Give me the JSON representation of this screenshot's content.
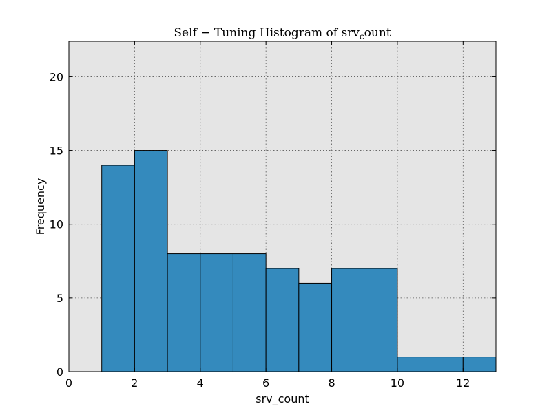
{
  "chart_data": {
    "type": "bar",
    "title": "Self − Tuning Histogram of srv",
    "title_subscript": "c",
    "title_suffix": "ount",
    "xlabel": "srv_count",
    "ylabel": "Frequency",
    "xlim": [
      0,
      13
    ],
    "ylim": [
      0,
      22.4
    ],
    "x_ticks": [
      0,
      2,
      4,
      6,
      8,
      10,
      12
    ],
    "x_tick_labels": [
      "0",
      "2",
      "4",
      "6",
      "8",
      "10",
      "12"
    ],
    "y_ticks": [
      0,
      5,
      10,
      15,
      20
    ],
    "y_tick_labels": [
      "0",
      "5",
      "10",
      "15",
      "20"
    ],
    "grid": true,
    "bins": [
      {
        "x0": 1,
        "x1": 2,
        "count": 14
      },
      {
        "x0": 2,
        "x1": 3,
        "count": 15
      },
      {
        "x0": 3,
        "x1": 4,
        "count": 8
      },
      {
        "x0": 4,
        "x1": 5,
        "count": 8
      },
      {
        "x0": 5,
        "x1": 6,
        "count": 8
      },
      {
        "x0": 6,
        "x1": 7,
        "count": 7
      },
      {
        "x0": 7,
        "x1": 8,
        "count": 6
      },
      {
        "x0": 8,
        "x1": 10,
        "count": 7
      },
      {
        "x0": 10,
        "x1": 12,
        "count": 1
      },
      {
        "x0": 12,
        "x1": 13,
        "count": 1
      }
    ],
    "colors": {
      "bar_fill": "#348abd",
      "plot_background": "#e5e5e5"
    }
  }
}
